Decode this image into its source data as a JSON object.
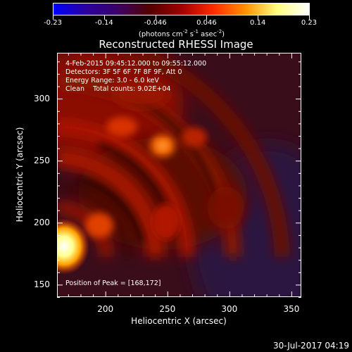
{
  "colorbar": {
    "tick_labels": [
      "-0.23",
      "-0.14",
      "-0.046",
      "0.046",
      "0.14",
      "0.23"
    ],
    "unit_base": "(photons cm",
    "unit_exp1": "-2",
    "unit_mid1": " s",
    "unit_exp2": "-1",
    "unit_mid2": " asec",
    "unit_exp3": "-2",
    "unit_end": ")",
    "colors": [
      "#0000ff",
      "#2a00a0",
      "#3a0068",
      "#520000",
      "#a00000",
      "#ff2a00",
      "#ff9000",
      "#ffff80",
      "#ffffff"
    ]
  },
  "title": "Reconstructed RHESSI Image",
  "annotations": {
    "time_range": "4-Feb-2015 09:45:12.000 to 09:55:12.000",
    "detectors": "Detectors: 3F 5F 6F 7F 8F 9F, Att 0",
    "energy": "Energy Range: 3.0 - 6.0 keV",
    "method": "Clean    Total counts: 9.02E+04",
    "peak": "Position of Peak = [168,172]"
  },
  "x_axis": {
    "label": "Heliocentric X (arcsec)",
    "ticks": [
      "200",
      "250",
      "300",
      "350"
    ],
    "tick_values": [
      200,
      250,
      300,
      350
    ],
    "range": [
      161,
      358
    ]
  },
  "y_axis": {
    "label": "Heliocentric Y (arcsec)",
    "ticks": [
      "150",
      "200",
      "250",
      "300"
    ],
    "tick_values": [
      150,
      200,
      250,
      300
    ],
    "range": [
      140,
      337
    ]
  },
  "timestamp": "30-Jul-2017 04:19"
}
